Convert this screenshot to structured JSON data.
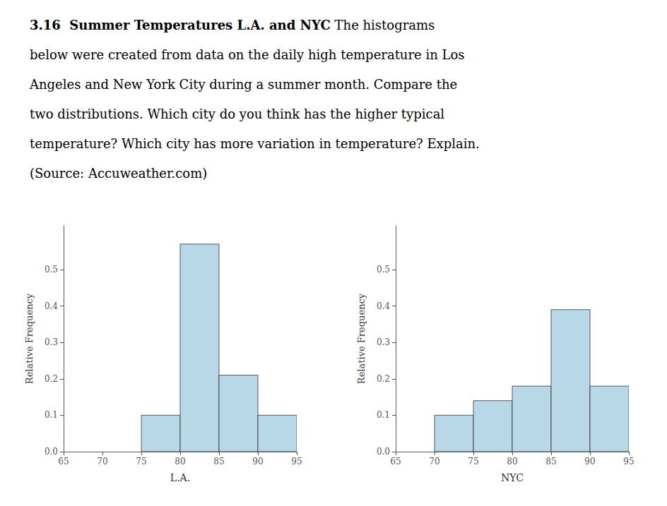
{
  "chart_data": [
    {
      "type": "histogram",
      "title": "3.16  Summer Temperatures L.A. and NYC",
      "annotations": [
        " The histograms",
        "below were created from data on the daily high temperature in Los",
        "Angeles and New York City during a summer month. Compare the",
        "two distributions. Which city do you think has the higher typical",
        "temperature? Which city has more variation in temperature? Explain.",
        "(Source: Accuweather.com)"
      ],
      "bins": [
        75,
        80,
        85,
        90,
        95
      ],
      "values": [
        0.1,
        0.57,
        0.21,
        0.1
      ],
      "color": "#b8d8e8",
      "xlabel": "L.A.",
      "ylabel": "Relative Frequency",
      "xlim": [
        65,
        95
      ],
      "xticks": [
        65,
        70,
        75,
        80,
        85,
        90,
        95
      ],
      "ylim": [
        0,
        0.62
      ],
      "yticks": [
        {
          "value": 0,
          "label": "0.0"
        },
        0.1,
        0.2,
        0.3,
        0.4,
        0.5
      ],
      "grid": false
    },
    {
      "type": "histogram",
      "bins": [
        70,
        75,
        80,
        85,
        90,
        95
      ],
      "values": [
        0.1,
        0.14,
        0.18,
        0.39,
        0.18
      ],
      "color": "#b8d8e8",
      "xlabel": "NYC",
      "ylabel": "Relative Frequency",
      "xlim": [
        65,
        95
      ],
      "xticks": [
        65,
        70,
        75,
        80,
        85,
        90,
        95
      ],
      "ylim": [
        0,
        0.62
      ],
      "yticks": [
        {
          "value": 0,
          "label": "0.0"
        },
        0.1,
        0.2,
        0.3,
        0.4,
        0.5
      ],
      "grid": false
    }
  ]
}
